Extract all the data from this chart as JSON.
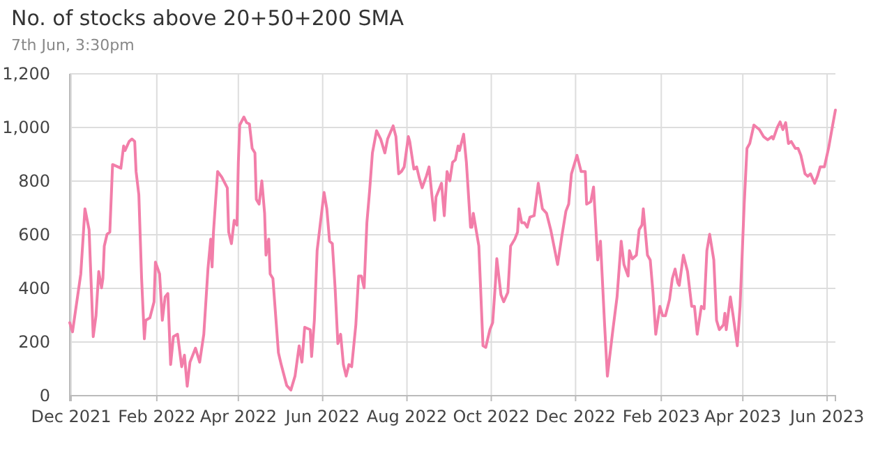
{
  "chart_data": {
    "type": "line",
    "title": "No. of stocks above 20+50+200 SMA",
    "subtitle": "7th Jun, 3:30pm",
    "xlim": [
      "2021-11-30",
      "2023-06-07"
    ],
    "xticks": [
      {
        "value": "2021-12-01",
        "label": "Dec 2021"
      },
      {
        "value": "2022-02-01",
        "label": "Feb 2022"
      },
      {
        "value": "2022-04-01",
        "label": "Apr 2022"
      },
      {
        "value": "2022-06-01",
        "label": "Jun 2022"
      },
      {
        "value": "2022-08-01",
        "label": "Aug 2022"
      },
      {
        "value": "2022-10-01",
        "label": "Oct 2022"
      },
      {
        "value": "2022-12-01",
        "label": "Dec 2022"
      },
      {
        "value": "2023-02-01",
        "label": "Feb 2023"
      },
      {
        "value": "2023-04-01",
        "label": "Apr 2023"
      },
      {
        "value": "2023-06-01",
        "label": "Jun 2023"
      }
    ],
    "ylim": [
      0,
      1200
    ],
    "yticks": [
      0,
      200,
      400,
      600,
      800,
      {
        "value": 1000,
        "label": "1,000"
      },
      {
        "value": 1200,
        "label": "1,200"
      }
    ],
    "grid": true,
    "marker": "none",
    "line_style": "solid",
    "series": [
      {
        "color": "#f27ea9",
        "x": [
          "2021-11-30",
          "2021-12-02",
          "2021-12-08",
          "2021-12-11",
          "2021-12-14",
          "2021-12-17",
          "2021-12-19",
          "2021-12-21",
          "2021-12-23",
          "2021-12-24",
          "2021-12-25",
          "2021-12-27",
          "2021-12-29",
          "2021-12-31",
          "2022-01-04",
          "2022-01-06",
          "2022-01-08",
          "2022-01-09",
          "2022-01-12",
          "2022-01-14",
          "2022-01-16",
          "2022-01-17",
          "2022-01-19",
          "2022-01-21",
          "2022-01-23",
          "2022-01-24",
          "2022-01-27",
          "2022-01-30",
          "2022-01-31",
          "2022-02-03",
          "2022-02-05",
          "2022-02-07",
          "2022-02-09",
          "2022-02-11",
          "2022-02-13",
          "2022-02-16",
          "2022-02-19",
          "2022-02-21",
          "2022-02-23",
          "2022-02-25",
          "2022-03-01",
          "2022-03-04",
          "2022-03-07",
          "2022-03-10",
          "2022-03-12",
          "2022-03-13",
          "2022-03-14",
          "2022-03-17",
          "2022-03-20",
          "2022-03-24",
          "2022-03-25",
          "2022-03-27",
          "2022-03-29",
          "2022-03-31",
          "2022-04-01",
          "2022-04-02",
          "2022-04-05",
          "2022-04-07",
          "2022-04-09",
          "2022-04-11",
          "2022-04-13",
          "2022-04-14",
          "2022-04-16",
          "2022-04-18",
          "2022-04-20",
          "2022-04-21",
          "2022-04-23",
          "2022-04-24",
          "2022-04-26",
          "2022-04-30",
          "2022-05-02",
          "2022-05-06",
          "2022-05-09",
          "2022-05-12",
          "2022-05-15",
          "2022-05-17",
          "2022-05-19",
          "2022-05-23",
          "2022-05-24",
          "2022-05-26",
          "2022-05-28",
          "2022-05-30",
          "2022-06-02",
          "2022-06-04",
          "2022-06-06",
          "2022-06-08",
          "2022-06-10",
          "2022-06-12",
          "2022-06-14",
          "2022-06-16",
          "2022-06-18",
          "2022-06-20",
          "2022-06-22",
          "2022-06-25",
          "2022-06-27",
          "2022-06-29",
          "2022-07-01",
          "2022-07-03",
          "2022-07-05",
          "2022-07-07",
          "2022-07-10",
          "2022-07-13",
          "2022-07-16",
          "2022-07-18",
          "2022-07-22",
          "2022-07-24",
          "2022-07-26",
          "2022-07-28",
          "2022-07-30",
          "2022-08-02",
          "2022-08-03",
          "2022-08-06",
          "2022-08-08",
          "2022-08-10",
          "2022-08-12",
          "2022-08-15",
          "2022-08-17",
          "2022-08-19",
          "2022-08-21",
          "2022-08-22",
          "2022-08-26",
          "2022-08-28",
          "2022-08-30",
          "2022-09-01",
          "2022-09-03",
          "2022-09-05",
          "2022-09-07",
          "2022-09-08",
          "2022-09-11",
          "2022-09-13",
          "2022-09-16",
          "2022-09-17",
          "2022-09-18",
          "2022-09-22",
          "2022-09-25",
          "2022-09-27",
          "2022-09-30",
          "2022-10-02",
          "2022-10-04",
          "2022-10-05",
          "2022-10-08",
          "2022-10-10",
          "2022-10-13",
          "2022-10-15",
          "2022-10-18",
          "2022-10-20",
          "2022-10-21",
          "2022-10-23",
          "2022-10-25",
          "2022-10-27",
          "2022-10-29",
          "2022-11-01",
          "2022-11-04",
          "2022-11-07",
          "2022-11-10",
          "2022-11-13",
          "2022-11-16",
          "2022-11-18",
          "2022-11-21",
          "2022-11-24",
          "2022-11-26",
          "2022-11-28",
          "2022-12-02",
          "2022-12-05",
          "2022-12-08",
          "2022-12-09",
          "2022-12-12",
          "2022-12-14",
          "2022-12-17",
          "2022-12-19",
          "2022-12-22",
          "2022-12-24",
          "2022-12-28",
          "2022-12-31",
          "2023-01-03",
          "2023-01-05",
          "2023-01-08",
          "2023-01-09",
          "2023-01-11",
          "2023-01-14",
          "2023-01-16",
          "2023-01-18",
          "2023-01-19",
          "2023-01-22",
          "2023-01-24",
          "2023-01-26",
          "2023-01-28",
          "2023-01-31",
          "2023-02-02",
          "2023-02-04",
          "2023-02-07",
          "2023-02-09",
          "2023-02-11",
          "2023-02-13",
          "2023-02-14",
          "2023-02-17",
          "2023-02-20",
          "2023-02-23",
          "2023-02-25",
          "2023-02-27",
          "2023-03-02",
          "2023-03-04",
          "2023-03-06",
          "2023-03-08",
          "2023-03-11",
          "2023-03-13",
          "2023-03-15",
          "2023-03-18",
          "2023-03-19",
          "2023-03-20",
          "2023-03-23",
          "2023-03-25",
          "2023-03-28",
          "2023-03-30",
          "2023-04-02",
          "2023-04-04",
          "2023-04-06",
          "2023-04-09",
          "2023-04-13",
          "2023-04-16",
          "2023-04-19",
          "2023-04-22",
          "2023-04-23",
          "2023-04-26",
          "2023-04-28",
          "2023-04-30",
          "2023-05-02",
          "2023-05-04",
          "2023-05-06",
          "2023-05-09",
          "2023-05-11",
          "2023-05-13",
          "2023-05-16",
          "2023-05-18",
          "2023-05-20",
          "2023-05-23",
          "2023-05-25",
          "2023-05-27",
          "2023-05-30",
          "2023-06-02",
          "2023-06-05",
          "2023-06-07"
        ],
        "values": [
          272,
          238,
          454,
          697,
          619,
          220,
          298,
          463,
          402,
          437,
          558,
          602,
          610,
          862,
          853,
          848,
          931,
          914,
          948,
          957,
          948,
          836,
          749,
          437,
          212,
          281,
          290,
          350,
          498,
          454,
          281,
          368,
          381,
          116,
          220,
          229,
          108,
          151,
          35,
          125,
          177,
          125,
          229,
          472,
          584,
          480,
          610,
          836,
          815,
          775,
          610,
          567,
          654,
          636,
          870,
          1009,
          1039,
          1018,
          1013,
          922,
          905,
          732,
          714,
          801,
          680,
          524,
          584,
          454,
          437,
          160,
          116,
          38,
          21,
          73,
          186,
          125,
          255,
          246,
          146,
          281,
          541,
          628,
          758,
          697,
          576,
          567,
          402,
          194,
          229,
          116,
          73,
          116,
          108,
          264,
          446,
          446,
          402,
          645,
          766,
          905,
          988,
          957,
          905,
          957,
          1006,
          966,
          827,
          836,
          853,
          966,
          948,
          845,
          853,
          810,
          775,
          818,
          853,
          749,
          654,
          740,
          792,
          671,
          836,
          801,
          870,
          879,
          931,
          914,
          975,
          870,
          628,
          628,
          680,
          558,
          186,
          180,
          246,
          272,
          420,
          511,
          376,
          350,
          385,
          558,
          584,
          610,
          697,
          645,
          645,
          628,
          666,
          671,
          792,
          697,
          680,
          619,
          541,
          489,
          593,
          688,
          714,
          827,
          896,
          836,
          836,
          714,
          723,
          778,
          506,
          576,
          264,
          73,
          246,
          368,
          576,
          489,
          446,
          541,
          510,
          524,
          619,
          636,
          697,
          524,
          506,
          385,
          229,
          333,
          298,
          298,
          359,
          437,
          472,
          420,
          411,
          524,
          463,
          333,
          333,
          229,
          333,
          324,
          541,
          602,
          506,
          281,
          246,
          264,
          307,
          246,
          368,
          298,
          186,
          333,
          714,
          922,
          940,
          1009,
          992,
          966,
          954,
          966,
          957,
          1001,
          1021,
          992,
          1018,
          940,
          948,
          922,
          922,
          896,
          827,
          818,
          827,
          792,
          818,
          853,
          853,
          922,
          1009,
          1065
        ]
      }
    ]
  }
}
